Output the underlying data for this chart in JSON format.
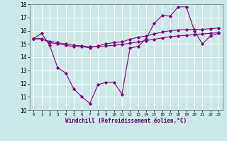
{
  "xlabel": "Windchill (Refroidissement éolien,°C)",
  "background_color": "#cce8e8",
  "line_color": "#880088",
  "xlim": [
    -0.5,
    23.5
  ],
  "ylim": [
    10,
    18
  ],
  "yticks": [
    10,
    11,
    12,
    13,
    14,
    15,
    16,
    17,
    18
  ],
  "xticks": [
    0,
    1,
    2,
    3,
    4,
    5,
    6,
    7,
    8,
    9,
    10,
    11,
    12,
    13,
    14,
    15,
    16,
    17,
    18,
    19,
    20,
    21,
    22,
    23
  ],
  "series": [
    {
      "x": [
        0,
        1,
        2,
        3,
        4,
        5,
        6,
        7,
        8,
        9,
        10,
        11,
        12,
        13,
        14,
        15,
        16,
        17,
        18,
        19,
        20,
        21,
        22,
        23
      ],
      "y": [
        15.4,
        15.8,
        14.9,
        13.2,
        12.8,
        11.6,
        11.0,
        10.5,
        11.9,
        12.1,
        12.1,
        11.2,
        14.7,
        14.8,
        15.4,
        16.55,
        17.15,
        17.1,
        17.8,
        17.8,
        16.0,
        15.0,
        15.6,
        15.8
      ]
    },
    {
      "x": [
        0,
        1,
        2,
        3,
        4,
        5,
        6,
        7,
        8,
        9,
        10,
        11,
        12,
        13,
        14,
        15,
        16,
        17,
        18,
        19,
        20,
        21,
        22,
        23
      ],
      "y": [
        15.4,
        15.4,
        15.1,
        15.0,
        14.9,
        14.8,
        14.8,
        14.7,
        14.85,
        15.0,
        15.1,
        15.15,
        15.35,
        15.5,
        15.6,
        15.75,
        15.9,
        16.0,
        16.05,
        16.1,
        16.1,
        16.1,
        16.15,
        16.2
      ]
    },
    {
      "x": [
        0,
        1,
        2,
        3,
        4,
        5,
        6,
        7,
        8,
        9,
        10,
        11,
        12,
        13,
        14,
        15,
        16,
        17,
        18,
        19,
        20,
        21,
        22,
        23
      ],
      "y": [
        15.4,
        15.35,
        15.2,
        15.1,
        15.0,
        14.9,
        14.85,
        14.8,
        14.8,
        14.85,
        14.9,
        14.95,
        15.05,
        15.15,
        15.25,
        15.35,
        15.45,
        15.55,
        15.6,
        15.65,
        15.7,
        15.75,
        15.8,
        15.85
      ]
    }
  ]
}
